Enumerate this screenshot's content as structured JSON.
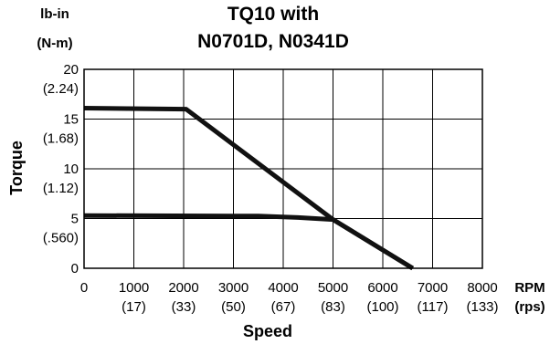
{
  "chart_data": {
    "type": "line",
    "title": [
      "TQ10 with",
      "N0701D, N0341D"
    ],
    "xlabel": "Speed",
    "ylabel": "Torque",
    "x_unit_primary": "RPM",
    "x_unit_secondary": "(rps)",
    "y_unit_primary": "lb-in",
    "y_unit_secondary": "(N-m)",
    "xlim": [
      0,
      8000
    ],
    "ylim": [
      0,
      20
    ],
    "grid": true,
    "x_ticks": [
      {
        "value": 0,
        "label": "0",
        "sub": ""
      },
      {
        "value": 1000,
        "label": "1000",
        "sub": "(17)"
      },
      {
        "value": 2000,
        "label": "2000",
        "sub": "(33)"
      },
      {
        "value": 3000,
        "label": "3000",
        "sub": "(50)"
      },
      {
        "value": 4000,
        "label": "4000",
        "sub": "(67)"
      },
      {
        "value": 5000,
        "label": "5000",
        "sub": "(83)"
      },
      {
        "value": 6000,
        "label": "6000",
        "sub": "(100)"
      },
      {
        "value": 7000,
        "label": "7000",
        "sub": "(117)"
      },
      {
        "value": 8000,
        "label": "8000",
        "sub": "(133)"
      }
    ],
    "y_ticks": [
      {
        "value": 0,
        "label": "0",
        "sub": ""
      },
      {
        "value": 5,
        "label": "5",
        "sub": "(.560)"
      },
      {
        "value": 10,
        "label": "10",
        "sub": "(1.12)"
      },
      {
        "value": 15,
        "label": "15",
        "sub": "(1.68)"
      },
      {
        "value": 20,
        "label": "20",
        "sub": "(2.24)"
      }
    ],
    "series": [
      {
        "points": [
          [
            0,
            16.1
          ],
          [
            2050,
            16.0
          ],
          [
            5000,
            4.9
          ],
          [
            6600,
            0
          ]
        ]
      },
      {
        "points": [
          [
            0,
            5.3
          ],
          [
            3500,
            5.25
          ],
          [
            4300,
            5.1
          ],
          [
            5000,
            4.9
          ],
          [
            6600,
            0
          ]
        ]
      }
    ],
    "line_color": "#111111"
  }
}
